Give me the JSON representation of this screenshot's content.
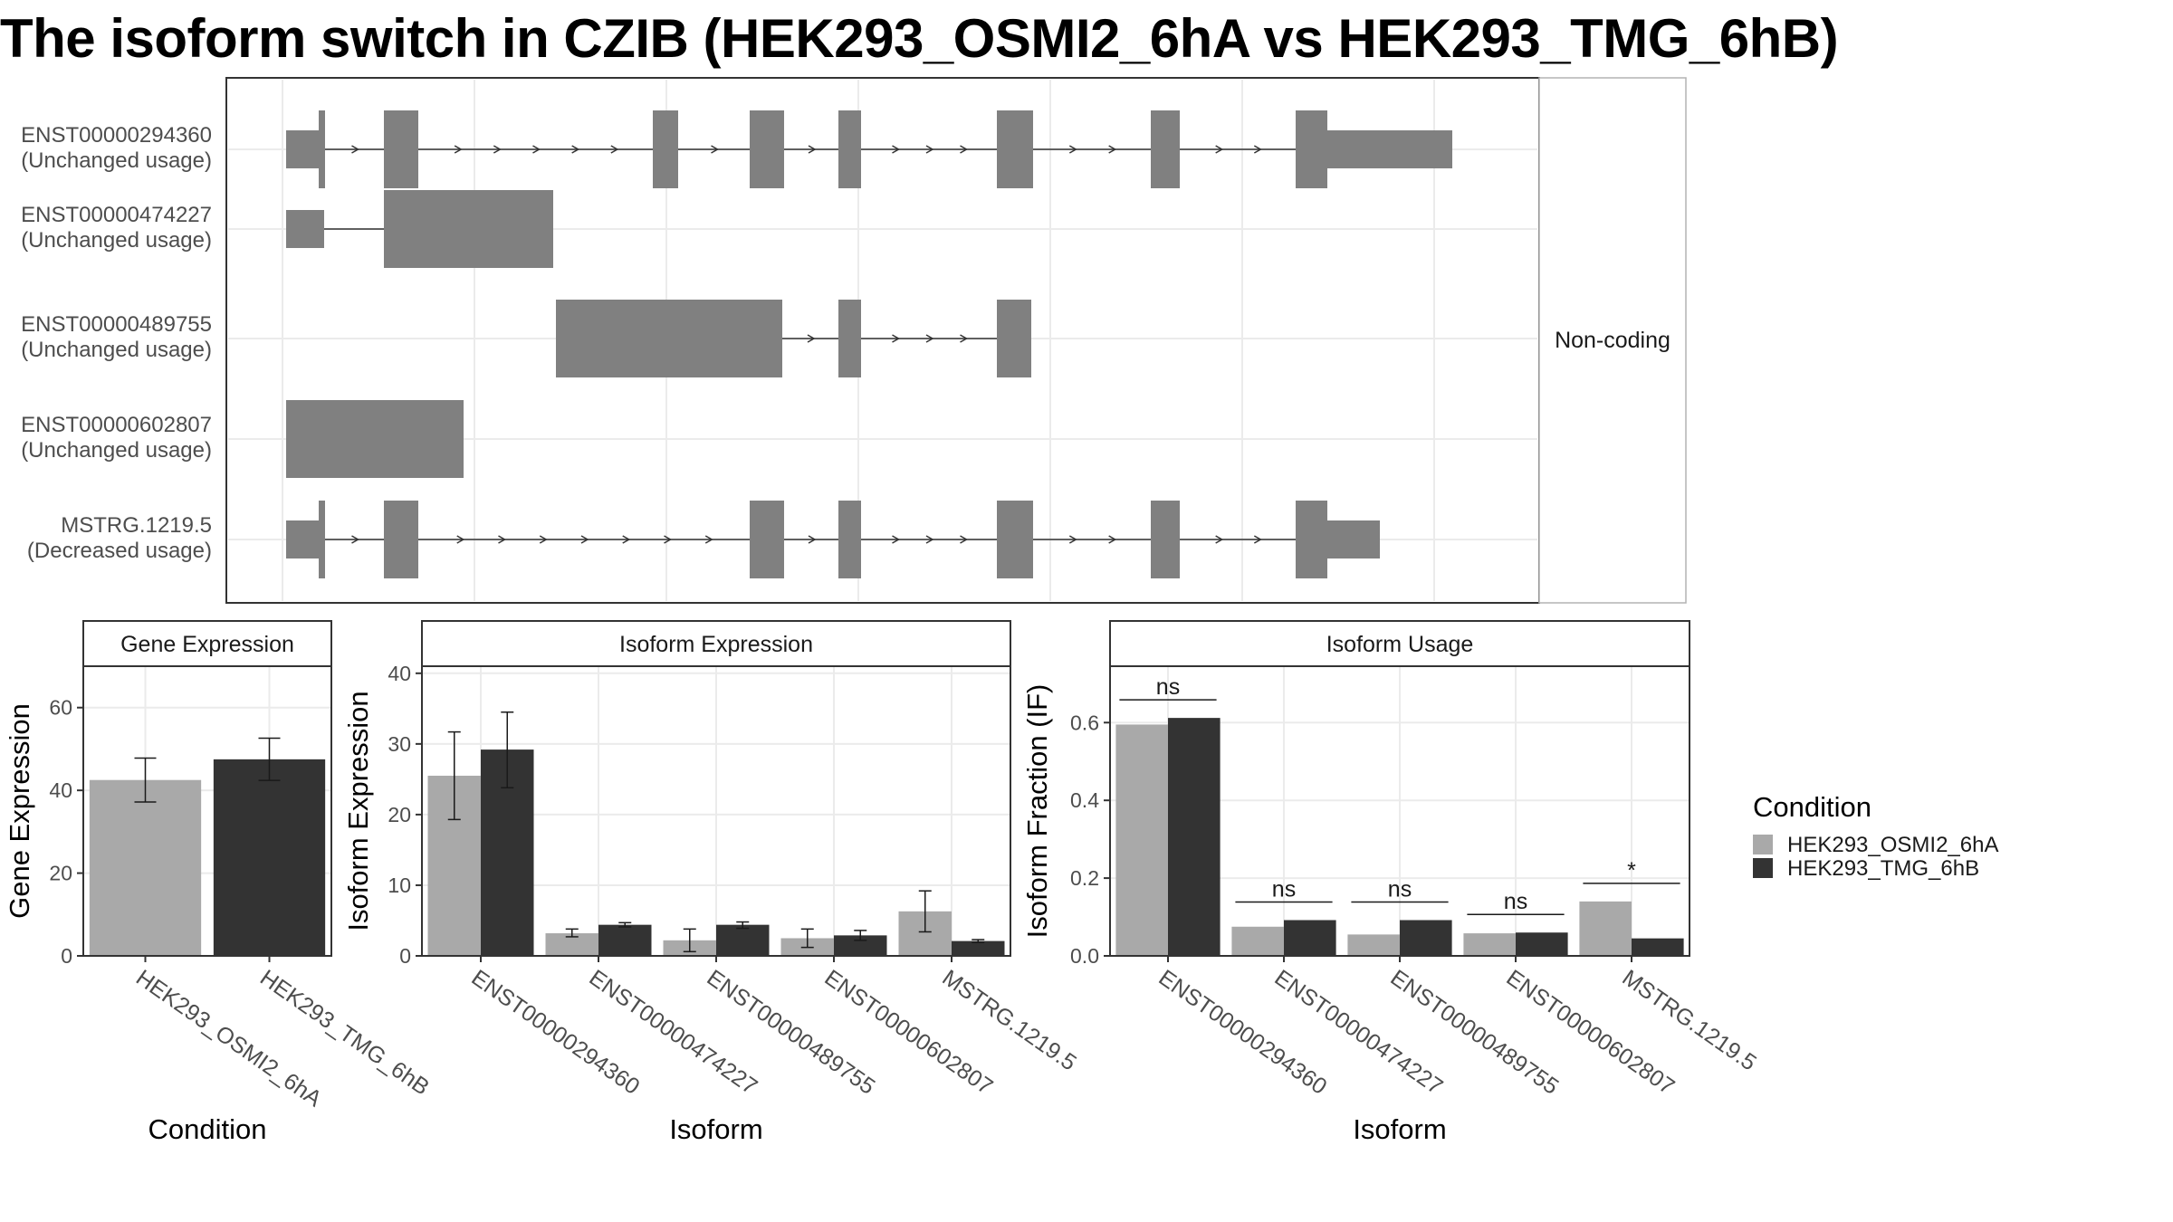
{
  "title": "The isoform switch in CZIB (HEK293_OSMI2_6hA vs HEK293_TMG_6hB)",
  "colors": {
    "cond_a": "#a9a9a9",
    "cond_b": "#333333",
    "exon": "#808080",
    "panel_border": "#333333",
    "strip_fill": "#ffffff",
    "grid": "#ebebeb"
  },
  "structure": {
    "facet_label": "Non-coding",
    "transcripts": [
      {
        "name": "ENST00000294360",
        "usage": "(Unchanged usage)",
        "exons": [
          [
            0,
            36
          ],
          [
            36,
            43
          ],
          [
            108,
            146
          ],
          [
            405,
            433
          ],
          [
            512,
            550
          ],
          [
            610,
            635
          ],
          [
            785,
            825
          ],
          [
            955,
            987
          ],
          [
            1115,
            1150
          ],
          [
            1150,
            1288
          ]
        ],
        "narrow": [
          0,
          9
        ],
        "small_arrows": true
      },
      {
        "name": "ENST00000474227",
        "usage": "(Unchanged usage)",
        "exons": [
          [
            0,
            42
          ],
          [
            108,
            295
          ]
        ],
        "narrow": [
          0
        ],
        "small_arrows": false
      },
      {
        "name": "ENST00000489755",
        "usage": "(Unchanged usage)",
        "exons": [
          [
            298,
            548
          ],
          [
            610,
            635
          ],
          [
            785,
            823
          ]
        ],
        "narrow": [],
        "small_arrows": true
      },
      {
        "name": "ENST00000602807",
        "usage": "(Unchanged usage)",
        "exons": [
          [
            0,
            196
          ]
        ],
        "narrow": [],
        "small_arrows": false
      },
      {
        "name": "MSTRG.1219.5",
        "usage": "(Decreased usage)",
        "exons": [
          [
            0,
            36
          ],
          [
            36,
            43
          ],
          [
            108,
            146
          ],
          [
            512,
            550
          ],
          [
            610,
            635
          ],
          [
            785,
            825
          ],
          [
            955,
            987
          ],
          [
            1115,
            1150
          ],
          [
            1150,
            1208
          ]
        ],
        "narrow": [
          0,
          8
        ],
        "small_arrows": true
      }
    ]
  },
  "chart_data": [
    {
      "type": "bar",
      "title": "Gene Expression",
      "xlabel": "Condition",
      "ylabel": "Gene Expression",
      "ylim": [
        0,
        70
      ],
      "yticks": [
        0,
        20,
        40,
        60
      ],
      "categories": [
        "HEK293_OSMI2_6hA",
        "HEK293_TMG_6hB"
      ],
      "values": [
        42.5,
        47.5
      ],
      "errors": [
        [
          37.2,
          47.8
        ],
        [
          42.4,
          52.6
        ]
      ]
    },
    {
      "type": "bar",
      "title": "Isoform Expression",
      "xlabel": "Isoform",
      "ylabel": "Isoform Expression",
      "ylim": [
        0,
        41
      ],
      "yticks": [
        0,
        10,
        20,
        30,
        40
      ],
      "categories": [
        "ENST00000294360",
        "ENST00000474227",
        "ENST00000489755",
        "ENST00000602807",
        "MSTRG.1219.5"
      ],
      "series": [
        {
          "name": "HEK293_OSMI2_6hA",
          "values": [
            25.5,
            3.2,
            2.2,
            2.5,
            6.3
          ],
          "errors": [
            [
              19.3,
              31.7
            ],
            [
              2.7,
              3.8
            ],
            [
              0.6,
              3.8
            ],
            [
              1.2,
              3.8
            ],
            [
              3.4,
              9.2
            ]
          ]
        },
        {
          "name": "HEK293_TMG_6hB",
          "values": [
            29.2,
            4.4,
            4.4,
            2.9,
            2.1
          ],
          "errors": [
            [
              23.8,
              34.5
            ],
            [
              4.1,
              4.7
            ],
            [
              3.9,
              4.8
            ],
            [
              2.2,
              3.6
            ],
            [
              1.9,
              2.3
            ]
          ]
        }
      ]
    },
    {
      "type": "bar",
      "title": "Isoform Usage",
      "xlabel": "Isoform",
      "ylabel": "Isoform Fraction (IF)",
      "ylim": [
        0,
        0.745
      ],
      "yticks": [
        "0.0",
        "0.2",
        "0.4",
        "0.6"
      ],
      "categories": [
        "ENST00000294360",
        "ENST00000474227",
        "ENST00000489755",
        "ENST00000602807",
        "MSTRG.1219.5"
      ],
      "series": [
        {
          "name": "HEK293_OSMI2_6hA",
          "values": [
            0.595,
            0.075,
            0.055,
            0.058,
            0.14
          ]
        },
        {
          "name": "HEK293_TMG_6hB",
          "values": [
            0.612,
            0.092,
            0.092,
            0.06,
            0.045
          ]
        }
      ],
      "significance": [
        "ns",
        "ns",
        "ns",
        "ns",
        "*"
      ]
    }
  ],
  "legend": {
    "title": "Condition",
    "items": [
      {
        "label": "HEK293_OSMI2_6hA",
        "color": "#a9a9a9"
      },
      {
        "label": "HEK293_TMG_6hB",
        "color": "#333333"
      }
    ]
  }
}
